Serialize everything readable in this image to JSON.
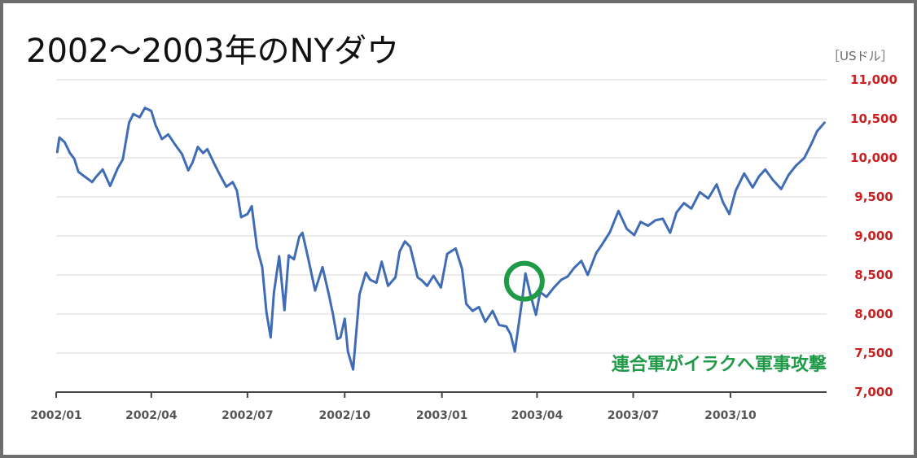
{
  "chart_data": {
    "type": "line",
    "title": "2002〜2003年のNYダウ",
    "unit_label": "［USドル］",
    "ylim": [
      7000,
      11000
    ],
    "y_ticks": [
      7000,
      7500,
      8000,
      8500,
      9000,
      9500,
      10000,
      10500,
      11000
    ],
    "y_tick_labels": [
      "7,000",
      "7,500",
      "8,000",
      "8,500",
      "9,000",
      "9,500",
      "10,000",
      "10,500",
      "11,000"
    ],
    "grid": true,
    "x_range": [
      "2002-01-01",
      "2003-12-31"
    ],
    "x_ticks": [
      "2002-01-01",
      "2002-04-01",
      "2002-07-01",
      "2002-10-01",
      "2003-01-01",
      "2003-04-01",
      "2003-07-01",
      "2003-10-01"
    ],
    "x_tick_labels": [
      "2002/01",
      "2002/04",
      "2002/07",
      "2002/10",
      "2003/01",
      "2003/04",
      "2003/07",
      "2003/10"
    ],
    "series": [
      {
        "color": "#3f6cb4",
        "points": [
          [
            "2002-01-02",
            10073
          ],
          [
            "2002-01-04",
            10260
          ],
          [
            "2002-01-09",
            10200
          ],
          [
            "2002-01-14",
            10060
          ],
          [
            "2002-01-18",
            9990
          ],
          [
            "2002-01-22",
            9820
          ],
          [
            "2002-01-29",
            9750
          ],
          [
            "2002-02-04",
            9690
          ],
          [
            "2002-02-08",
            9760
          ],
          [
            "2002-02-14",
            9850
          ],
          [
            "2002-02-21",
            9640
          ],
          [
            "2002-02-28",
            9860
          ],
          [
            "2002-03-05",
            9980
          ],
          [
            "2002-03-11",
            10450
          ],
          [
            "2002-03-15",
            10560
          ],
          [
            "2002-03-21",
            10520
          ],
          [
            "2002-03-26",
            10640
          ],
          [
            "2002-04-01",
            10600
          ],
          [
            "2002-04-05",
            10420
          ],
          [
            "2002-04-11",
            10240
          ],
          [
            "2002-04-17",
            10300
          ],
          [
            "2002-04-23",
            10180
          ],
          [
            "2002-04-30",
            10050
          ],
          [
            "2002-05-06",
            9840
          ],
          [
            "2002-05-10",
            9940
          ],
          [
            "2002-05-15",
            10140
          ],
          [
            "2002-05-20",
            10060
          ],
          [
            "2002-05-24",
            10110
          ],
          [
            "2002-05-30",
            9940
          ],
          [
            "2002-06-05",
            9780
          ],
          [
            "2002-06-11",
            9630
          ],
          [
            "2002-06-17",
            9690
          ],
          [
            "2002-06-21",
            9580
          ],
          [
            "2002-06-25",
            9240
          ],
          [
            "2002-07-01",
            9280
          ],
          [
            "2002-07-05",
            9380
          ],
          [
            "2002-07-10",
            8850
          ],
          [
            "2002-07-15",
            8600
          ],
          [
            "2002-07-19",
            8020
          ],
          [
            "2002-07-23",
            7700
          ],
          [
            "2002-07-26",
            8270
          ],
          [
            "2002-07-31",
            8740
          ],
          [
            "2002-08-05",
            8050
          ],
          [
            "2002-08-09",
            8750
          ],
          [
            "2002-08-14",
            8700
          ],
          [
            "2002-08-19",
            8990
          ],
          [
            "2002-08-22",
            9040
          ],
          [
            "2002-08-28",
            8680
          ],
          [
            "2002-09-03",
            8300
          ],
          [
            "2002-09-10",
            8600
          ],
          [
            "2002-09-16",
            8250
          ],
          [
            "2002-09-20",
            7990
          ],
          [
            "2002-09-24",
            7680
          ],
          [
            "2002-09-27",
            7700
          ],
          [
            "2002-10-01",
            7940
          ],
          [
            "2002-10-04",
            7520
          ],
          [
            "2002-10-09",
            7290
          ],
          [
            "2002-10-15",
            8250
          ],
          [
            "2002-10-21",
            8530
          ],
          [
            "2002-10-25",
            8440
          ],
          [
            "2002-10-31",
            8400
          ],
          [
            "2002-11-05",
            8670
          ],
          [
            "2002-11-11",
            8360
          ],
          [
            "2002-11-18",
            8470
          ],
          [
            "2002-11-22",
            8800
          ],
          [
            "2002-11-27",
            8930
          ],
          [
            "2002-12-02",
            8860
          ],
          [
            "2002-12-09",
            8470
          ],
          [
            "2002-12-13",
            8430
          ],
          [
            "2002-12-18",
            8360
          ],
          [
            "2002-12-24",
            8490
          ],
          [
            "2002-12-31",
            8340
          ],
          [
            "2003-01-06",
            8770
          ],
          [
            "2003-01-14",
            8840
          ],
          [
            "2003-01-20",
            8580
          ],
          [
            "2003-01-24",
            8130
          ],
          [
            "2003-01-30",
            8040
          ],
          [
            "2003-02-05",
            8090
          ],
          [
            "2003-02-11",
            7900
          ],
          [
            "2003-02-18",
            8040
          ],
          [
            "2003-02-24",
            7860
          ],
          [
            "2003-03-03",
            7840
          ],
          [
            "2003-03-07",
            7740
          ],
          [
            "2003-03-11",
            7520
          ],
          [
            "2003-03-18",
            8190
          ],
          [
            "2003-03-21",
            8520
          ],
          [
            "2003-03-26",
            8230
          ],
          [
            "2003-03-31",
            7990
          ],
          [
            "2003-04-04",
            8280
          ],
          [
            "2003-04-10",
            8220
          ],
          [
            "2003-04-17",
            8340
          ],
          [
            "2003-04-24",
            8440
          ],
          [
            "2003-04-30",
            8480
          ],
          [
            "2003-05-06",
            8590
          ],
          [
            "2003-05-13",
            8680
          ],
          [
            "2003-05-19",
            8500
          ],
          [
            "2003-05-27",
            8780
          ],
          [
            "2003-06-02",
            8900
          ],
          [
            "2003-06-09",
            9050
          ],
          [
            "2003-06-17",
            9320
          ],
          [
            "2003-06-25",
            9090
          ],
          [
            "2003-07-02",
            9010
          ],
          [
            "2003-07-08",
            9180
          ],
          [
            "2003-07-15",
            9130
          ],
          [
            "2003-07-22",
            9200
          ],
          [
            "2003-07-29",
            9220
          ],
          [
            "2003-08-05",
            9040
          ],
          [
            "2003-08-11",
            9300
          ],
          [
            "2003-08-18",
            9420
          ],
          [
            "2003-08-25",
            9350
          ],
          [
            "2003-09-02",
            9560
          ],
          [
            "2003-09-10",
            9480
          ],
          [
            "2003-09-18",
            9660
          ],
          [
            "2003-09-24",
            9430
          ],
          [
            "2003-09-30",
            9280
          ],
          [
            "2003-10-06",
            9580
          ],
          [
            "2003-10-14",
            9800
          ],
          [
            "2003-10-22",
            9620
          ],
          [
            "2003-10-28",
            9760
          ],
          [
            "2003-11-03",
            9850
          ],
          [
            "2003-11-10",
            9720
          ],
          [
            "2003-11-18",
            9600
          ],
          [
            "2003-11-25",
            9780
          ],
          [
            "2003-12-02",
            9900
          ],
          [
            "2003-12-10",
            10000
          ],
          [
            "2003-12-16",
            10160
          ],
          [
            "2003-12-22",
            10340
          ],
          [
            "2003-12-29",
            10450
          ]
        ]
      }
    ],
    "annotation": {
      "text": "連合軍がイラクへ軍事攻撃",
      "date": "2003-03-20",
      "value": 8420,
      "color": "#1f9a47"
    }
  }
}
